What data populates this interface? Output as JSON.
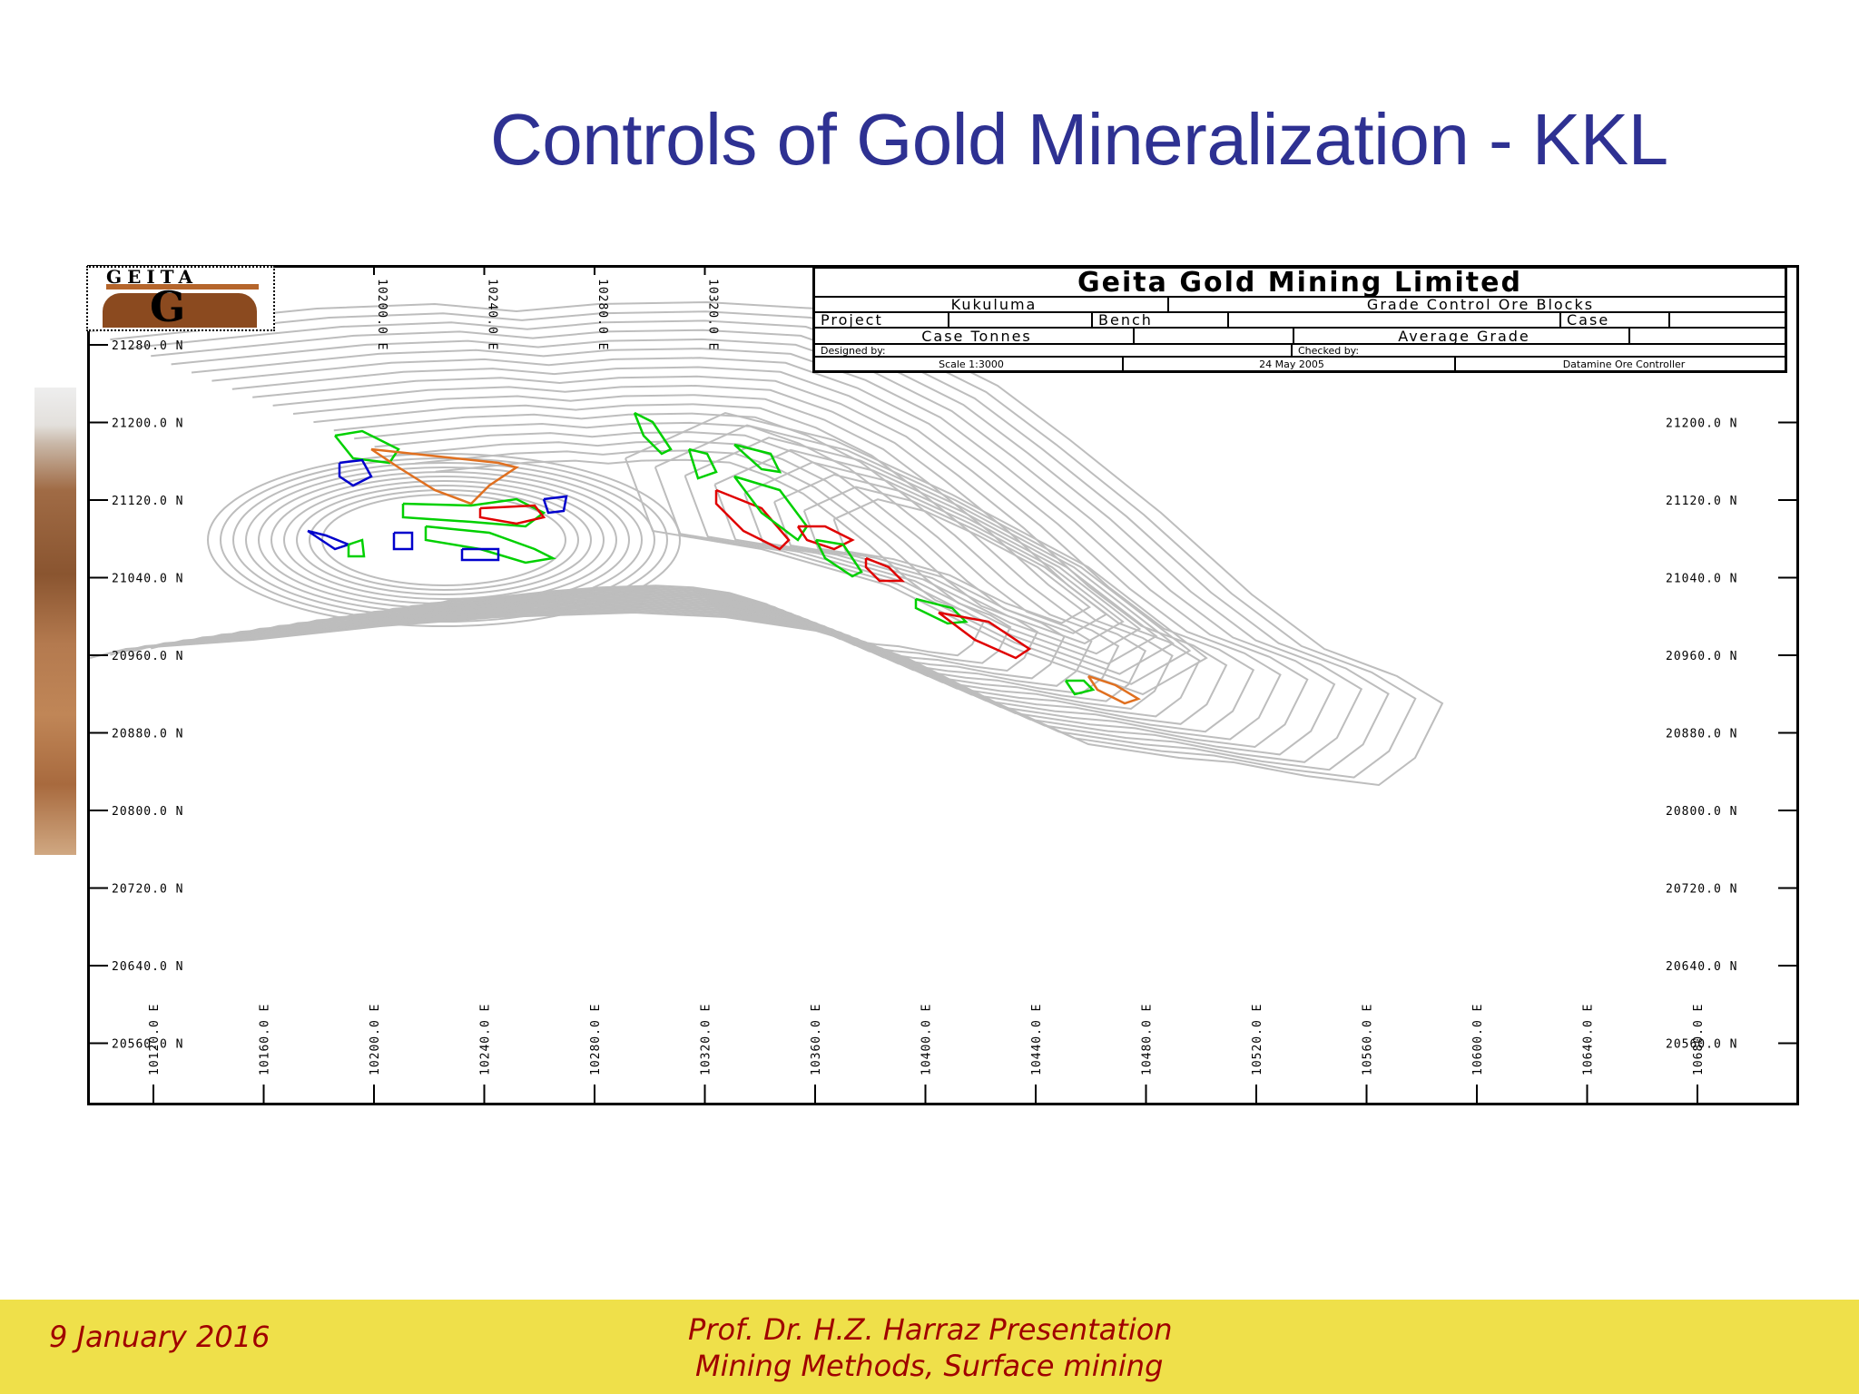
{
  "slide": {
    "title": "Controls of Gold Mineralization - KKL"
  },
  "map": {
    "logo_text": "GEITA",
    "title_block": {
      "company": "Geita Gold Mining Limited",
      "mine": "Kukuluma",
      "sheet": "Grade Control Ore Blocks",
      "project_label": "Project",
      "bench_label": "Bench",
      "case_label": "Case",
      "case_tonnes_label": "Case Tonnes",
      "average_grade_label": "Average Grade",
      "designed_by_label": "Designed by:",
      "checked_by_label": "Checked by:",
      "scale": "Scale 1:3000",
      "date": "24 May 2005",
      "controller": "Datamine Ore Controller"
    },
    "northing_labels_left": [
      "21280.0 N",
      "21200.0 N",
      "21120.0 N",
      "21040.0 N",
      "20960.0 N",
      "20880.0 N",
      "20800.0 N",
      "20720.0 N",
      "20640.0 N",
      "20560.0 N"
    ],
    "northing_labels_right": [
      "21200.0 N",
      "21120.0 N",
      "21040.0 N",
      "20960.0 N",
      "20880.0 N",
      "20800.0 N",
      "20720.0 N",
      "20640.0 N",
      "20560.0 N"
    ],
    "easting_labels_bottom": [
      "10120.0 E",
      "10160.0 E",
      "10200.0 E",
      "10240.0 E",
      "10280.0 E",
      "10320.0 E",
      "10360.0 E",
      "10400.0 E",
      "10440.0 E",
      "10480.0 E",
      "10520.0 E",
      "10560.0 E",
      "10600.0 E",
      "10640.0 E",
      "10680.0 E"
    ],
    "easting_labels_top": [
      "10200.0 E",
      "10240.0 E",
      "10280.0 E",
      "10320.0 E"
    ],
    "colors": {
      "contour": "#bdbdbd",
      "ore_green": "#00d000",
      "ore_red": "#e00000",
      "ore_blue": "#0000cc",
      "ore_orange": "#e07020"
    }
  },
  "footer": {
    "date": "9 January 2016",
    "presenter": "Prof. Dr. H.Z. Harraz Presentation",
    "subject": "Mining Methods, Surface mining"
  }
}
